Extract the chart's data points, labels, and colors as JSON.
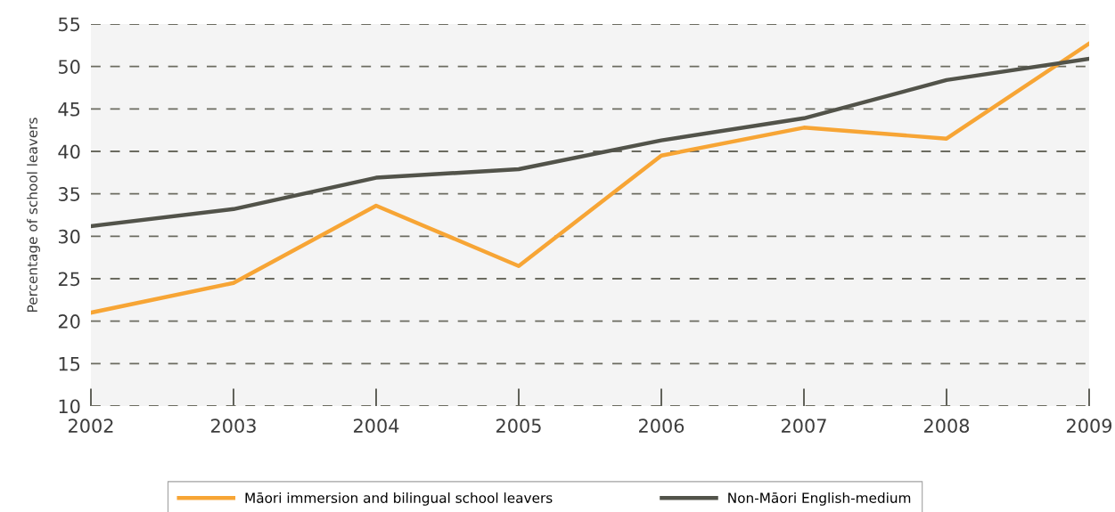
{
  "chart_data": {
    "type": "line",
    "ylabel": "Percentage of school leavers",
    "categories": [
      "2002",
      "2003",
      "2004",
      "2005",
      "2006",
      "2007",
      "2008",
      "2009"
    ],
    "series": [
      {
        "name": "Māori immersion and bilingual school leavers",
        "color": "#f7a535",
        "values": [
          21.0,
          24.5,
          33.6,
          26.5,
          39.5,
          42.8,
          41.5,
          52.7
        ]
      },
      {
        "name": "Non-Māori English-medium",
        "color": "#52534a",
        "values": [
          31.2,
          33.2,
          36.9,
          37.9,
          41.3,
          43.9,
          48.4,
          50.9
        ]
      }
    ],
    "ylim": [
      10,
      55
    ],
    "yticks": [
      10,
      15,
      20,
      25,
      30,
      35,
      40,
      45,
      50,
      55
    ],
    "grid": "y",
    "legend": "bottom",
    "line_style": "solid",
    "marker": "none"
  }
}
